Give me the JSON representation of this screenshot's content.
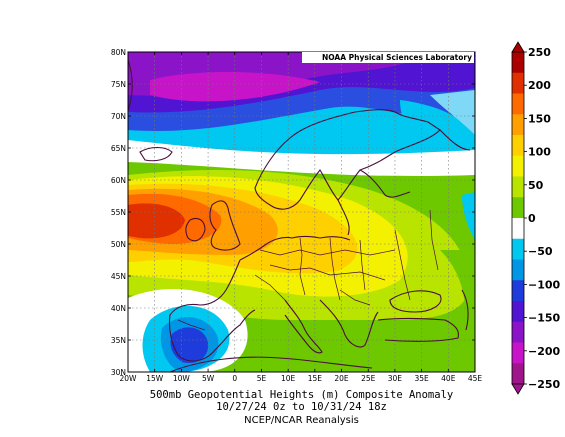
{
  "credit": "NOAA Physical Sciences Laboratory",
  "caption": {
    "line1": "500mb Geopotential Heights (m)    Composite Anomaly",
    "line2": "10/27/24 0z  to 10/31/24 18z",
    "line3": "NCEP/NCAR Reanalysis"
  },
  "map": {
    "lon_ticks": [
      "20W",
      "15W",
      "10W",
      "5W",
      "0",
      "5E",
      "10E",
      "15E",
      "20E",
      "25E",
      "30E",
      "35E",
      "40E",
      "45E"
    ],
    "lat_ticks": [
      "30N",
      "35N",
      "40N",
      "45N",
      "50N",
      "55N",
      "60N",
      "65N",
      "70N",
      "75N",
      "80N"
    ]
  },
  "colorbar": {
    "labels": [
      "250",
      "200",
      "150",
      "100",
      "50",
      "0",
      "−50",
      "−100",
      "−150",
      "−200",
      "−250"
    ],
    "colors": [
      "#ac0000",
      "#e03000",
      "#ff6a00",
      "#ffa000",
      "#ffd000",
      "#f3f000",
      "#b8e400",
      "#6ec800",
      "#ffffff",
      "#00c8f0",
      "#0096e6",
      "#1e3cdc",
      "#5014d2",
      "#8c14c8",
      "#c814c8",
      "#a0148c"
    ]
  }
}
